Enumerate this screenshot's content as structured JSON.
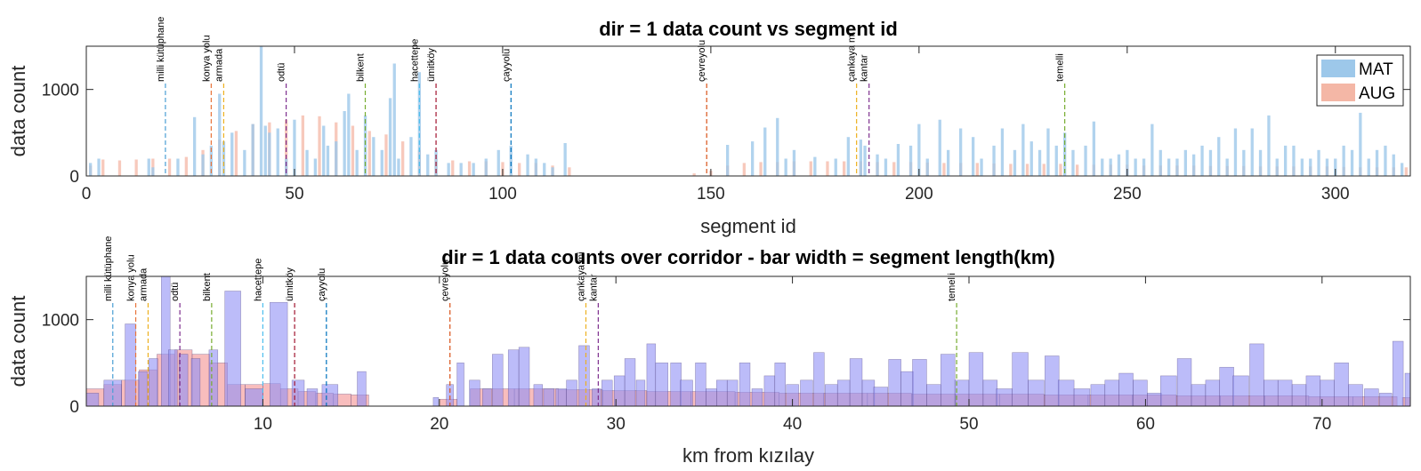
{
  "colors": {
    "mat_fill": "#9dc8ea",
    "aug_fill": "#f4b7a6",
    "km_mat_fill": "#8f8ff5",
    "km_aug_fill": "#f49a9a",
    "km_overlap": "#9a5fc4"
  },
  "chart_data": [
    {
      "type": "bar",
      "title": "dir = 1 data count vs segment id",
      "xlabel": "segment id",
      "ylabel": "data count",
      "xlim": [
        0,
        318
      ],
      "ylim": [
        0,
        1500
      ],
      "xticks": [
        0,
        50,
        100,
        150,
        200,
        250,
        300
      ],
      "yticks": [
        0,
        1000
      ],
      "grid": false,
      "legend": {
        "placement": "top-right",
        "entries": [
          "MAT",
          "AUG"
        ]
      },
      "series": [
        {
          "name": "MAT",
          "x": [
            1,
            3,
            15,
            16,
            22,
            26,
            28,
            30,
            32,
            33,
            35,
            38,
            40,
            42,
            43,
            44,
            46,
            48,
            50,
            53,
            55,
            57,
            58,
            60,
            62,
            63,
            65,
            67,
            69,
            71,
            73,
            74,
            75,
            78,
            80,
            82,
            84,
            87,
            90,
            93,
            96,
            99,
            102,
            106,
            108,
            110,
            112,
            115,
            154,
            160,
            163,
            166,
            168,
            170,
            175,
            180,
            183,
            186,
            187,
            190,
            192,
            195,
            198,
            200,
            202,
            205,
            207,
            210,
            213,
            215,
            218,
            220,
            223,
            225,
            227,
            229,
            231,
            233,
            235,
            237,
            240,
            242,
            244,
            246,
            248,
            250,
            252,
            254,
            256,
            258,
            260,
            262,
            264,
            266,
            268,
            270,
            272,
            274,
            276,
            278,
            280,
            282,
            284,
            286,
            288,
            290,
            292,
            294,
            296,
            298,
            300,
            302,
            304,
            306,
            308,
            310,
            312,
            314,
            316
          ],
          "values": [
            150,
            200,
            200,
            100,
            200,
            680,
            250,
            350,
            950,
            400,
            500,
            300,
            600,
            1500,
            580,
            500,
            550,
            200,
            650,
            300,
            200,
            580,
            350,
            400,
            750,
            950,
            300,
            700,
            450,
            300,
            900,
            1300,
            200,
            450,
            1200,
            250,
            300,
            150,
            150,
            150,
            200,
            300,
            350,
            250,
            200,
            150,
            100,
            380,
            360,
            400,
            560,
            670,
            200,
            300,
            220,
            200,
            450,
            420,
            350,
            250,
            200,
            370,
            350,
            600,
            200,
            650,
            300,
            550,
            450,
            200,
            350,
            550,
            300,
            600,
            400,
            300,
            550,
            350,
            500,
            300,
            350,
            630,
            200,
            200,
            250,
            300,
            200,
            200,
            600,
            300,
            200,
            200,
            300,
            250,
            350,
            300,
            450,
            200,
            550,
            300,
            550,
            300,
            700,
            200,
            350,
            350,
            200,
            200,
            300,
            200,
            200,
            350,
            300,
            730,
            200,
            300,
            350,
            250,
            150
          ]
        },
        {
          "name": "AUG",
          "x": [
            1,
            4,
            8,
            12,
            16,
            20,
            24,
            28,
            32,
            36,
            40,
            44,
            48,
            52,
            56,
            60,
            64,
            68,
            72,
            76,
            80,
            84,
            88,
            92,
            96,
            100,
            104,
            108,
            112,
            116,
            146,
            150,
            154,
            158,
            162,
            166,
            170,
            174,
            178,
            182,
            186,
            190,
            194,
            198,
            202,
            206,
            210,
            214,
            218,
            222,
            226,
            230,
            234,
            238,
            242,
            246,
            250,
            254,
            258,
            262,
            266,
            270,
            274,
            278,
            282,
            286,
            290,
            294,
            298,
            302,
            306,
            310,
            314,
            317
          ],
          "values": [
            120,
            190,
            180,
            190,
            200,
            200,
            220,
            300,
            420,
            520,
            600,
            620,
            650,
            700,
            690,
            620,
            580,
            520,
            480,
            400,
            300,
            200,
            180,
            170,
            170,
            160,
            150,
            150,
            120,
            100,
            30,
            60,
            120,
            150,
            160,
            160,
            170,
            170,
            170,
            170,
            170,
            160,
            160,
            160,
            155,
            150,
            150,
            150,
            145,
            140,
            140,
            140,
            140,
            130,
            130,
            130,
            130,
            120,
            120,
            120,
            120,
            115,
            115,
            115,
            110,
            110,
            110,
            110,
            110,
            105,
            100,
            100,
            100,
            100
          ]
        }
      ],
      "annotations": [
        {
          "label": "milli kütüphane",
          "x": 19,
          "color": "#4a9fd4"
        },
        {
          "label": "konya yolu",
          "x": 30,
          "color": "#e8743b"
        },
        {
          "label": "armada",
          "x": 33,
          "color": "#edb120"
        },
        {
          "label": "odtü",
          "x": 48,
          "color": "#7e2f8e"
        },
        {
          "label": "bilkent",
          "x": 67,
          "color": "#77ac30"
        },
        {
          "label": "hacettepe",
          "x": 80,
          "color": "#4dbeee"
        },
        {
          "label": "ümitköy",
          "x": 84,
          "color": "#a2142f"
        },
        {
          "label": "çayyolu",
          "x": 102,
          "color": "#0072bd"
        },
        {
          "label": "çevreyolu",
          "x": 149,
          "color": "#d95319"
        },
        {
          "label": "çankaya mi",
          "x": 185,
          "color": "#edb120"
        },
        {
          "label": "kantar",
          "x": 188,
          "color": "#7e2f8e"
        },
        {
          "label": "temelli",
          "x": 235,
          "color": "#77ac30"
        }
      ]
    },
    {
      "type": "bar",
      "title": "dir = 1 data counts over corridor - bar width = segment length(km)",
      "xlabel": "km from kızılay",
      "ylabel": "data count",
      "xlim": [
        0,
        75
      ],
      "ylim": [
        0,
        1500
      ],
      "xticks": [
        10,
        20,
        30,
        40,
        50,
        60,
        70
      ],
      "yticks": [
        0,
        1000
      ],
      "grid": false,
      "series": [
        {
          "name": "MAT",
          "x": [
            0.2,
            1.5,
            2.5,
            3.2,
            3.8,
            4.5,
            4.9,
            5.5,
            6.2,
            7.2,
            8.3,
            9.5,
            10.9,
            12.0,
            12.8,
            13.8,
            15.6,
            19.8,
            20.6,
            21.2,
            22.0,
            22.7,
            23.3,
            24.2,
            24.8,
            25.6,
            26.2,
            26.9,
            27.5,
            28.2,
            28.9,
            29.5,
            30.2,
            30.8,
            31.4,
            32.0,
            32.6,
            33.4,
            34.0,
            34.8,
            35.4,
            36.0,
            36.6,
            37.3,
            38.0,
            38.7,
            39.3,
            40.0,
            40.8,
            41.5,
            42.2,
            42.9,
            43.6,
            44.3,
            45.0,
            45.8,
            46.5,
            47.2,
            48.0,
            48.8,
            49.6,
            50.4,
            51.2,
            52.0,
            52.9,
            53.8,
            54.7,
            55.5,
            56.4,
            57.3,
            58.1,
            58.9,
            59.7,
            60.5,
            61.3,
            62.2,
            63.0,
            63.8,
            64.6,
            65.4,
            66.3,
            67.1,
            67.9,
            68.7,
            69.5,
            70.3,
            71.1,
            71.9,
            72.8,
            73.6,
            74.3,
            74.9
          ],
          "widths": [
            1.0,
            1.0,
            0.6,
            0.5,
            0.5,
            0.5,
            0.5,
            0.5,
            0.5,
            0.5,
            0.9,
            1.0,
            1.0,
            0.7,
            0.6,
            0.9,
            0.5,
            0.3,
            0.4,
            0.4,
            0.6,
            0.5,
            0.6,
            0.6,
            0.6,
            0.5,
            0.6,
            0.6,
            0.6,
            0.6,
            0.5,
            0.6,
            0.6,
            0.6,
            0.5,
            0.5,
            0.7,
            0.6,
            0.7,
            0.6,
            0.6,
            0.6,
            0.6,
            0.6,
            0.6,
            0.6,
            0.6,
            0.7,
            0.7,
            0.6,
            0.7,
            0.7,
            0.7,
            0.7,
            0.8,
            0.7,
            0.7,
            0.8,
            0.8,
            0.8,
            0.8,
            0.8,
            0.8,
            0.9,
            0.9,
            0.9,
            0.8,
            0.9,
            0.9,
            0.8,
            0.8,
            0.8,
            0.8,
            0.8,
            0.9,
            0.8,
            0.8,
            0.8,
            0.8,
            0.9,
            0.8,
            0.8,
            0.8,
            0.8,
            0.8,
            0.8,
            0.8,
            0.8,
            0.8,
            0.7,
            0.6,
            0.4
          ],
          "values": [
            150,
            300,
            950,
            400,
            550,
            1500,
            650,
            600,
            550,
            650,
            1330,
            200,
            1200,
            300,
            200,
            250,
            400,
            100,
            250,
            500,
            300,
            200,
            600,
            650,
            680,
            250,
            200,
            200,
            300,
            700,
            200,
            300,
            350,
            550,
            300,
            720,
            500,
            500,
            300,
            500,
            200,
            300,
            300,
            500,
            200,
            350,
            500,
            250,
            300,
            620,
            250,
            300,
            550,
            300,
            220,
            540,
            400,
            540,
            250,
            600,
            300,
            620,
            300,
            200,
            620,
            300,
            580,
            300,
            200,
            250,
            300,
            380,
            300,
            150,
            350,
            550,
            250,
            300,
            450,
            350,
            720,
            300,
            300,
            250,
            350,
            300,
            500,
            250,
            200,
            150,
            750,
            380
          ]
        },
        {
          "name": "AUG",
          "x": [
            0.5,
            1.5,
            2.5,
            3.5,
            4.5,
            5.5,
            6.5,
            7.5,
            8.5,
            9.5,
            10.5,
            11.5,
            12.5,
            13.5,
            14.5,
            15.5,
            20.5,
            23.0,
            25.5,
            28.0,
            30.5,
            33.0,
            35.5,
            38.0,
            40.5,
            43.0,
            45.5,
            48.0,
            50.5,
            53.0,
            55.5,
            58.0,
            60.5,
            63.0,
            65.5,
            68.0,
            70.5,
            73.0,
            74.8
          ],
          "widths": [
            1.0,
            1.0,
            1.0,
            1.0,
            1.0,
            1.0,
            1.0,
            1.0,
            1.0,
            1.0,
            1.0,
            1.0,
            1.0,
            1.0,
            1.0,
            1.0,
            1.0,
            2.5,
            2.5,
            2.5,
            2.5,
            2.5,
            2.5,
            2.5,
            2.5,
            2.5,
            2.5,
            2.5,
            2.5,
            2.5,
            2.5,
            2.5,
            2.5,
            2.5,
            2.5,
            2.5,
            2.5,
            2.5,
            0.5
          ],
          "values": [
            200,
            250,
            300,
            420,
            600,
            650,
            600,
            500,
            250,
            250,
            260,
            200,
            170,
            150,
            140,
            130,
            80,
            200,
            200,
            190,
            180,
            170,
            170,
            160,
            150,
            150,
            150,
            140,
            140,
            140,
            130,
            130,
            130,
            120,
            120,
            120,
            110,
            110,
            100
          ]
        }
      ],
      "annotations": [
        {
          "label": "milli kütüphane",
          "x": 1.5,
          "color": "#4a9fd4"
        },
        {
          "label": "konya yolu",
          "x": 2.8,
          "color": "#e8743b"
        },
        {
          "label": "armada",
          "x": 3.5,
          "color": "#edb120"
        },
        {
          "label": "odtü",
          "x": 5.3,
          "color": "#7e2f8e"
        },
        {
          "label": "bilkent",
          "x": 7.1,
          "color": "#77ac30"
        },
        {
          "label": "hacettepe",
          "x": 10.0,
          "color": "#4dbeee"
        },
        {
          "label": "ümitköy",
          "x": 11.8,
          "color": "#a2142f"
        },
        {
          "label": "çayyolu",
          "x": 13.6,
          "color": "#0072bd"
        },
        {
          "label": "çevreyolu",
          "x": 20.6,
          "color": "#d95319"
        },
        {
          "label": "çankaya mi",
          "x": 28.3,
          "color": "#edb120"
        },
        {
          "label": "kantar",
          "x": 29.0,
          "color": "#7e2f8e"
        },
        {
          "label": "temelli",
          "x": 49.3,
          "color": "#77ac30"
        }
      ]
    }
  ]
}
